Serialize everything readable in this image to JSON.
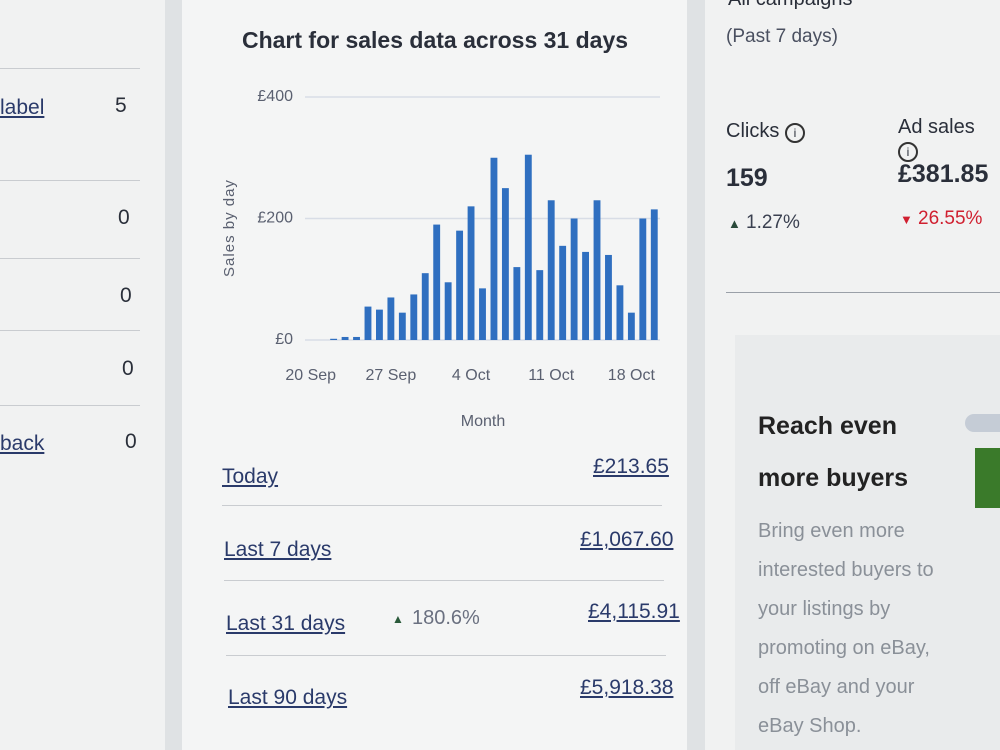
{
  "left_panel": {
    "rows": [
      {
        "label": "label",
        "value": 5
      },
      {
        "value": 0
      },
      {
        "value": 0
      },
      {
        "value": 0
      },
      {
        "label": "back",
        "value": 0
      }
    ]
  },
  "chart_data": {
    "type": "bar",
    "title": "Chart for sales data across 31 days",
    "y_label": "Sales by day",
    "x_label": "Month",
    "categories": [
      "20 Sep",
      null,
      null,
      null,
      null,
      null,
      null,
      "27 Sep",
      null,
      null,
      null,
      null,
      null,
      null,
      "4 Oct",
      null,
      null,
      null,
      null,
      null,
      null,
      "11 Oct",
      null,
      null,
      null,
      null,
      null,
      null,
      "18 Oct",
      null,
      null
    ],
    "values": [
      0,
      0,
      2,
      5,
      5,
      55,
      50,
      70,
      45,
      75,
      110,
      190,
      95,
      180,
      220,
      85,
      300,
      250,
      120,
      305,
      115,
      230,
      155,
      200,
      145,
      230,
      140,
      90,
      45,
      200,
      215
    ],
    "color": "#2f6fc0",
    "ylim": [
      0,
      400
    ],
    "yticks": [
      {
        "value": 0,
        "label": "£0"
      },
      {
        "value": 200,
        "label": "£200"
      },
      {
        "value": 400,
        "label": "£400"
      }
    ],
    "grid": true
  },
  "sales_summary": {
    "rows": [
      {
        "label": "Today",
        "amount": "£213.65"
      },
      {
        "label": "Last 7 days",
        "amount": "£1,067.60"
      },
      {
        "label": "Last 31 days",
        "change": "180.6%",
        "amount": "£4,115.91"
      },
      {
        "label": "Last 90 days",
        "amount": "£5,918.38"
      }
    ]
  },
  "campaigns": {
    "title": "All campaigns",
    "subtitle": "(Past 7 days)",
    "metrics": [
      {
        "label": "Clicks",
        "value": "159",
        "change": "1.27%"
      },
      {
        "label": "Ad sales",
        "value": "£381.85",
        "change": "26.55%"
      }
    ]
  },
  "promo": {
    "title": "Reach even more buyers",
    "body": "Bring even more interested buyers to your listings by promoting on eBay, off eBay and your eBay Shop."
  }
}
